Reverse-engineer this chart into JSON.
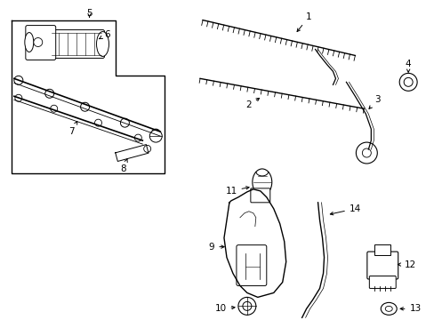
{
  "bg_color": "#ffffff",
  "line_color": "#000000",
  "fig_width": 4.89,
  "fig_height": 3.6,
  "dpi": 100,
  "fs_label": 7.5
}
